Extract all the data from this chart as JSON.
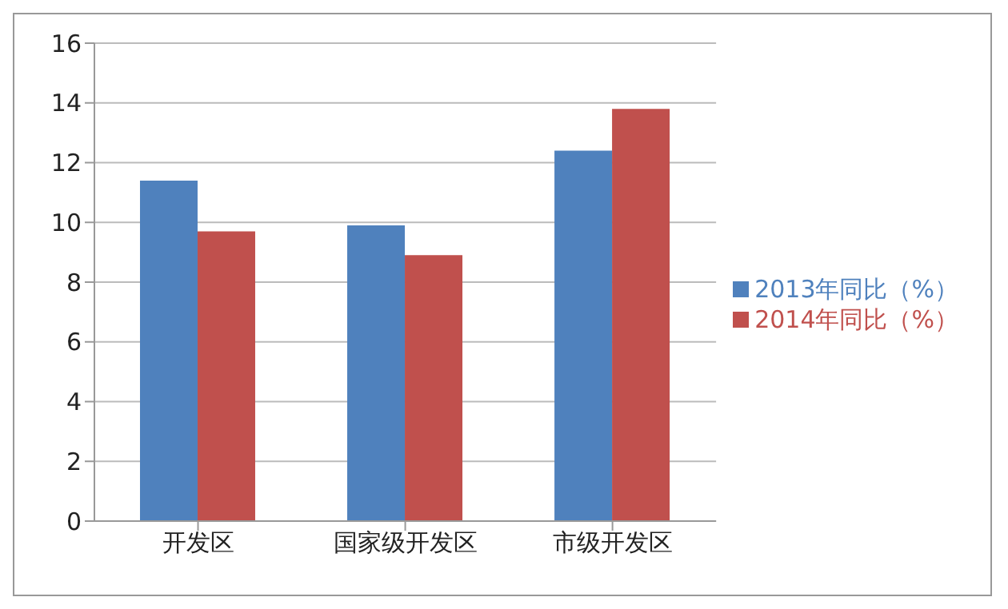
{
  "chart_data": {
    "type": "bar",
    "categories": [
      "开发区",
      "国家级开发区",
      "市级开发区"
    ],
    "series": [
      {
        "name": "2013年同比（%）",
        "color": "#4f81bd",
        "values": [
          11.4,
          9.9,
          12.4
        ]
      },
      {
        "name": "2014年同比（%）",
        "color": "#c0504d",
        "values": [
          9.7,
          8.9,
          13.8
        ]
      }
    ],
    "ylim": [
      0,
      16
    ],
    "yticks": [
      0,
      2,
      4,
      6,
      8,
      10,
      12,
      14,
      16
    ],
    "grid": "y",
    "legend": "right"
  }
}
